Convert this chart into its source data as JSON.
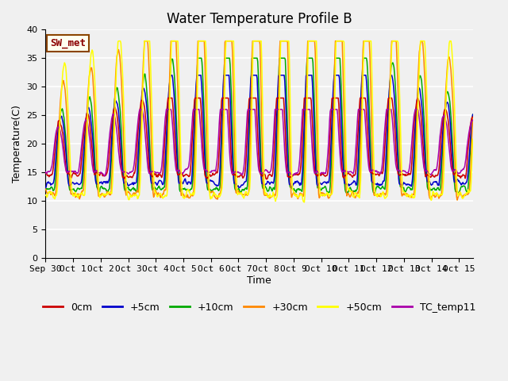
{
  "title": "Water Temperature Profile B",
  "xlabel": "Time",
  "ylabel": "Temperature(C)",
  "ylim": [
    0,
    40
  ],
  "background_color": "#f0f0f0",
  "grid_color": "white",
  "annotation_text": "SW_met",
  "annotation_color": "#8b0000",
  "annotation_bg": "#fffff0",
  "annotation_border": "#8b4500",
  "series": [
    {
      "label": "0cm",
      "color": "#cc0000"
    },
    {
      "label": "+5cm",
      "color": "#0000cc"
    },
    {
      "label": "+10cm",
      "color": "#00aa00"
    },
    {
      "label": "+30cm",
      "color": "#ff8800"
    },
    {
      "label": "+50cm",
      "color": "#ffff00"
    },
    {
      "label": "TC_temp11",
      "color": "#aa00aa"
    }
  ],
  "xtick_labels": [
    "Sep 30",
    "Oct 1",
    "Oct 2",
    "Oct 3",
    "Oct 4",
    "Oct 5",
    "Oct 6",
    "Oct 7",
    "Oct 8",
    "Oct 9",
    "Oct 10",
    "Oct 11",
    "Oct 12",
    "Oct 13",
    "Oct 14",
    "Oct 15"
  ],
  "title_fontsize": 12,
  "axis_fontsize": 9,
  "tick_fontsize": 8,
  "legend_fontsize": 9
}
